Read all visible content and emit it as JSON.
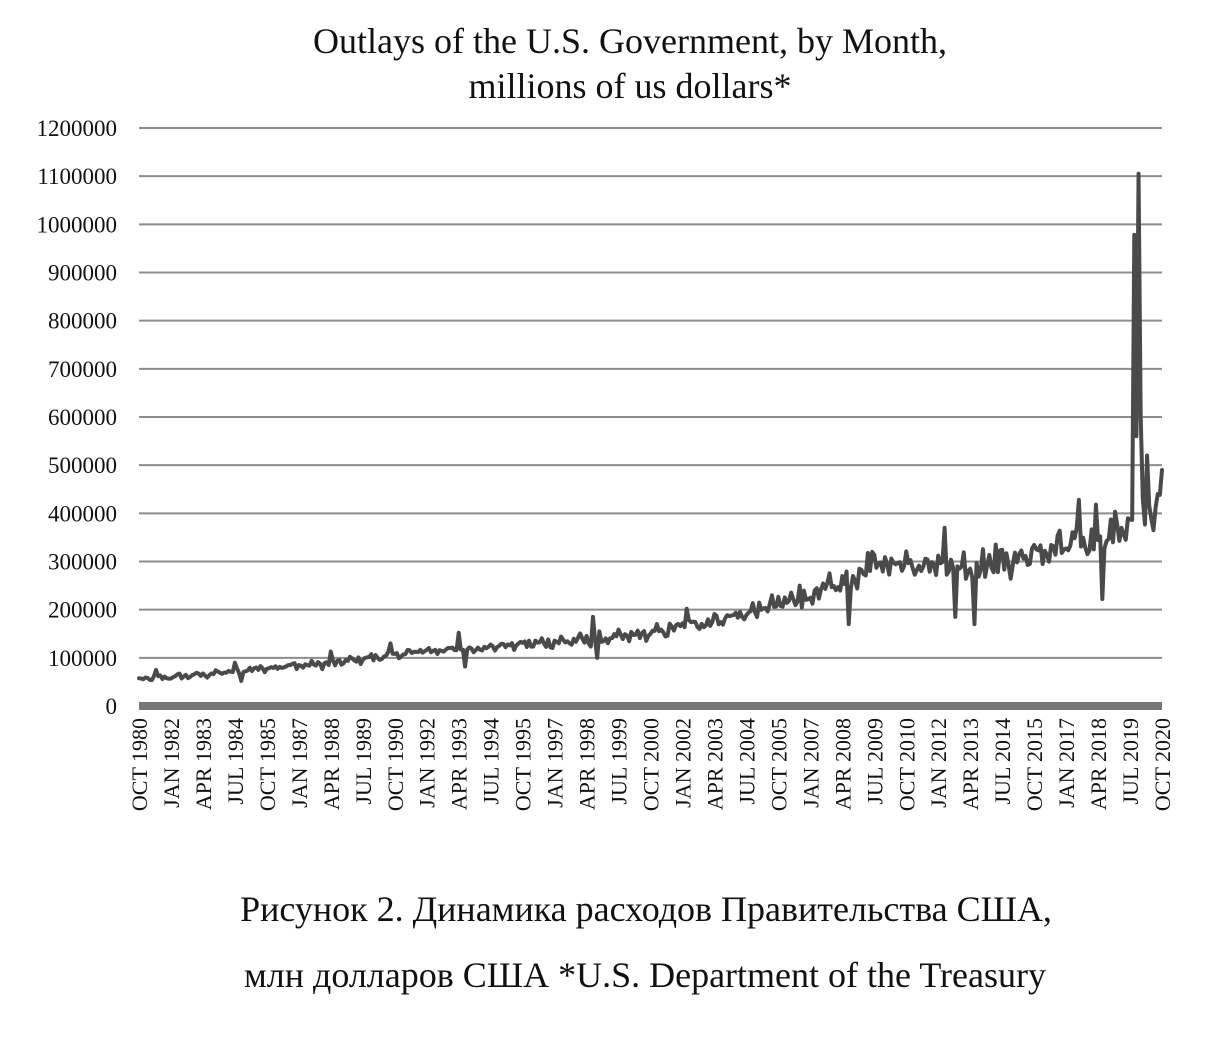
{
  "chart_data": {
    "type": "line",
    "title": [
      "Outlays of the U.S. Government, by Month,",
      "millions of us dollars*"
    ],
    "xlabel": "",
    "ylabel": "",
    "ylim": [
      0,
      1200000
    ],
    "grid": true,
    "legend": "none",
    "y_ticks": [
      {
        "value": 0,
        "label": "0"
      },
      {
        "value": 100000,
        "label": "100000"
      },
      {
        "value": 200000,
        "label": "200000"
      },
      {
        "value": 300000,
        "label": "300000"
      },
      {
        "value": 400000,
        "label": "400000"
      },
      {
        "value": 500000,
        "label": "500000"
      },
      {
        "value": 600000,
        "label": "600000"
      },
      {
        "value": 700000,
        "label": "700000"
      },
      {
        "value": 800000,
        "label": "800000"
      },
      {
        "value": 900000,
        "label": "900000"
      },
      {
        "value": 1000000,
        "label": "1000000"
      },
      {
        "value": 1100000,
        "label": "1100000"
      },
      {
        "value": 1200000,
        "label": "1200000"
      }
    ],
    "x_ticks": [
      {
        "index": 0,
        "label": "OCT 1980"
      },
      {
        "index": 15,
        "label": "JAN 1982"
      },
      {
        "index": 30,
        "label": "APR 1983"
      },
      {
        "index": 45,
        "label": "JUL 1984"
      },
      {
        "index": 60,
        "label": "OCT 1985"
      },
      {
        "index": 75,
        "label": "JAN 1987"
      },
      {
        "index": 90,
        "label": "APR 1988"
      },
      {
        "index": 105,
        "label": "JUL 1989"
      },
      {
        "index": 120,
        "label": "OCT 1990"
      },
      {
        "index": 135,
        "label": "JAN 1992"
      },
      {
        "index": 150,
        "label": "APR 1993"
      },
      {
        "index": 165,
        "label": "JUL 1994"
      },
      {
        "index": 180,
        "label": "OCT 1995"
      },
      {
        "index": 195,
        "label": "JAN 1997"
      },
      {
        "index": 210,
        "label": "APR 1998"
      },
      {
        "index": 225,
        "label": "JUL 1999"
      },
      {
        "index": 240,
        "label": "OCT 2000"
      },
      {
        "index": 255,
        "label": "JAN 2002"
      },
      {
        "index": 270,
        "label": "APR 2003"
      },
      {
        "index": 285,
        "label": "JUL 2004"
      },
      {
        "index": 300,
        "label": "OCT 2005"
      },
      {
        "index": 315,
        "label": "JAN 2007"
      },
      {
        "index": 330,
        "label": "APR 2008"
      },
      {
        "index": 345,
        "label": "JUL 2009"
      },
      {
        "index": 360,
        "label": "OCT 2010"
      },
      {
        "index": 375,
        "label": "JAN 2012"
      },
      {
        "index": 390,
        "label": "APR 2013"
      },
      {
        "index": 405,
        "label": "JUL 2014"
      },
      {
        "index": 420,
        "label": "OCT 2015"
      },
      {
        "index": 435,
        "label": "JAN 2017"
      },
      {
        "index": 450,
        "label": "APR 2018"
      },
      {
        "index": 465,
        "label": "JUL 2019"
      },
      {
        "index": 480,
        "label": "OCT 2020"
      }
    ],
    "series": [
      {
        "name": "Outlays",
        "frequency": "monthly",
        "start": "OCT 1980",
        "end": "OCT 2020",
        "trend": [
          {
            "index": 0,
            "value": 55000
          },
          {
            "index": 30,
            "value": 65000
          },
          {
            "index": 45,
            "value": 72000
          },
          {
            "index": 60,
            "value": 80000
          },
          {
            "index": 75,
            "value": 84000
          },
          {
            "index": 90,
            "value": 88000
          },
          {
            "index": 105,
            "value": 98000
          },
          {
            "index": 120,
            "value": 106000
          },
          {
            "index": 135,
            "value": 115000
          },
          {
            "index": 150,
            "value": 118000
          },
          {
            "index": 165,
            "value": 123000
          },
          {
            "index": 180,
            "value": 128000
          },
          {
            "index": 195,
            "value": 133000
          },
          {
            "index": 210,
            "value": 137000
          },
          {
            "index": 225,
            "value": 142000
          },
          {
            "index": 240,
            "value": 150000
          },
          {
            "index": 255,
            "value": 165000
          },
          {
            "index": 270,
            "value": 178000
          },
          {
            "index": 285,
            "value": 192000
          },
          {
            "index": 300,
            "value": 212000
          },
          {
            "index": 315,
            "value": 225000
          },
          {
            "index": 330,
            "value": 255000
          },
          {
            "index": 345,
            "value": 292000
          },
          {
            "index": 360,
            "value": 300000
          },
          {
            "index": 375,
            "value": 295000
          },
          {
            "index": 390,
            "value": 290000
          },
          {
            "index": 405,
            "value": 296000
          },
          {
            "index": 420,
            "value": 315000
          },
          {
            "index": 435,
            "value": 330000
          },
          {
            "index": 450,
            "value": 345000
          },
          {
            "index": 465,
            "value": 380000
          },
          {
            "index": 472,
            "value": 390000
          },
          {
            "index": 480,
            "value": 440000
          }
        ],
        "volatility": [
          {
            "index": 0,
            "amplitude": 6000
          },
          {
            "index": 90,
            "amplitude": 9000
          },
          {
            "index": 180,
            "amplitude": 12000
          },
          {
            "index": 240,
            "amplitude": 15000
          },
          {
            "index": 300,
            "amplitude": 20000
          },
          {
            "index": 330,
            "amplitude": 30000
          },
          {
            "index": 360,
            "amplitude": 32000
          },
          {
            "index": 420,
            "amplitude": 35000
          },
          {
            "index": 450,
            "amplitude": 40000
          },
          {
            "index": 480,
            "amplitude": 45000
          }
        ],
        "notable_points": [
          {
            "index": 8,
            "value": 75000
          },
          {
            "index": 45,
            "value": 90000
          },
          {
            "index": 48,
            "value": 52000
          },
          {
            "index": 90,
            "value": 113000
          },
          {
            "index": 118,
            "value": 130000
          },
          {
            "index": 150,
            "value": 152000
          },
          {
            "index": 153,
            "value": 82000
          },
          {
            "index": 213,
            "value": 185000
          },
          {
            "index": 215,
            "value": 100000
          },
          {
            "index": 257,
            "value": 202000
          },
          {
            "index": 310,
            "value": 250000
          },
          {
            "index": 333,
            "value": 170000
          },
          {
            "index": 344,
            "value": 320000
          },
          {
            "index": 378,
            "value": 370000
          },
          {
            "index": 383,
            "value": 185000
          },
          {
            "index": 392,
            "value": 170000
          },
          {
            "index": 402,
            "value": 335000
          },
          {
            "index": 441,
            "value": 428000
          },
          {
            "index": 449,
            "value": 418000
          },
          {
            "index": 452,
            "value": 222000
          },
          {
            "index": 467,
            "value": 978000
          },
          {
            "index": 468,
            "value": 560000
          },
          {
            "index": 469,
            "value": 1105000
          },
          {
            "index": 470,
            "value": 600000
          },
          {
            "index": 471,
            "value": 430000
          },
          {
            "index": 473,
            "value": 520000
          },
          {
            "index": 476,
            "value": 365000
          },
          {
            "index": 478,
            "value": 440000
          },
          {
            "index": 480,
            "value": 490000
          }
        ]
      }
    ]
  },
  "caption": {
    "line1": "Рисунок 2. Динамика расходов Правительства США,",
    "line2": "млн долларов США *U.S. Department of the Treasury"
  },
  "colors": {
    "series": "#4a4a4a",
    "grid": "#8c8c8c",
    "axis": "#777777",
    "text": "#111111"
  }
}
